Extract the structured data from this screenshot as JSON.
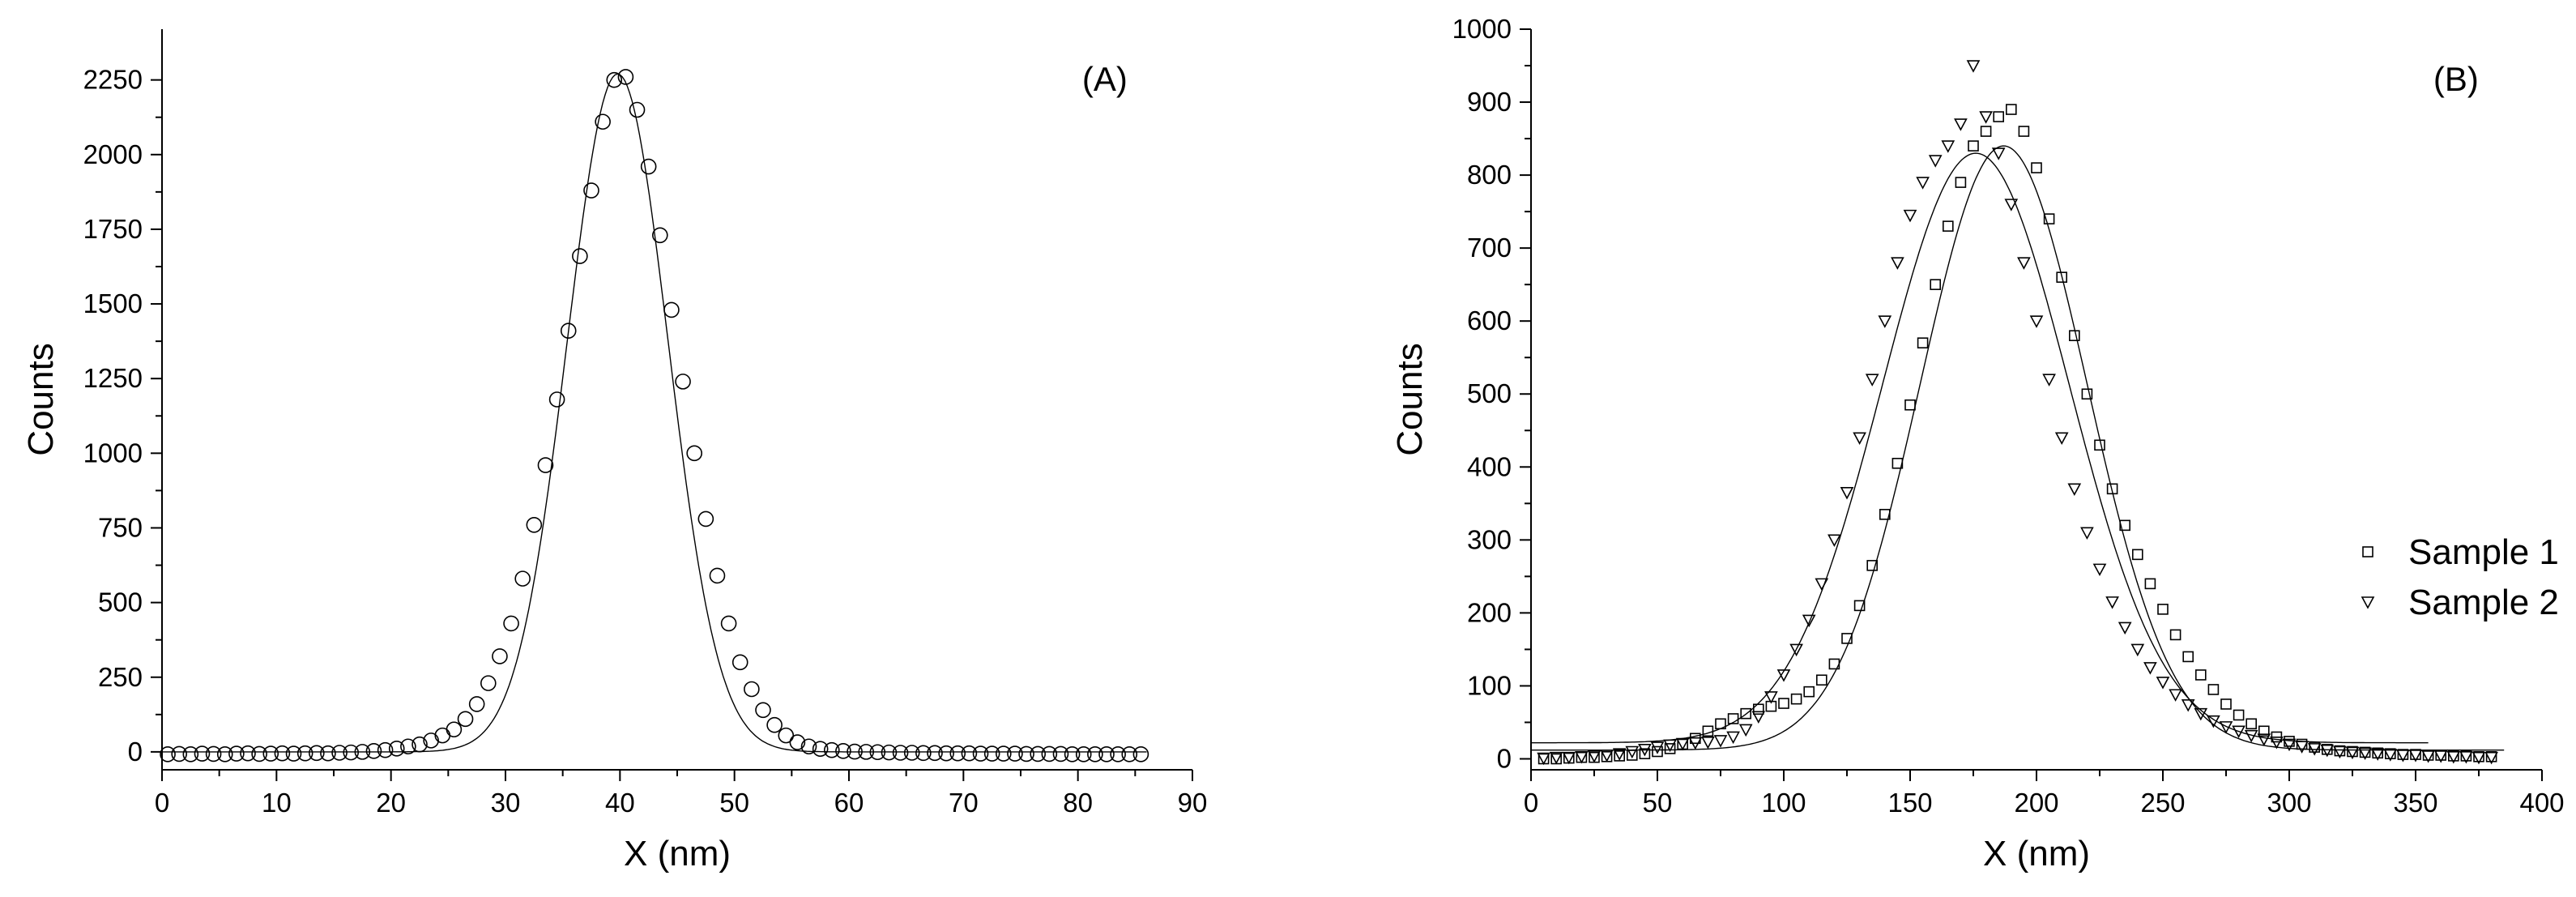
{
  "chart_data": [
    {
      "type": "scatter",
      "panel_label": "(A)",
      "xlabel": "X (nm)",
      "ylabel": "Counts",
      "xlim": [
        0,
        90
      ],
      "ylim": [
        -60,
        2420
      ],
      "xticks": [
        0,
        10,
        20,
        30,
        40,
        50,
        60,
        70,
        80,
        90
      ],
      "yticks": [
        0,
        250,
        500,
        750,
        1000,
        1250,
        1500,
        1750,
        2000,
        2250
      ],
      "grid": false,
      "marker": "circle",
      "fit": {
        "type": "gaussian",
        "center": 39.8,
        "sigma": 4.4,
        "amplitude": 2270,
        "baseline": 0
      },
      "series": [
        {
          "x": [
            0.5,
            1.5,
            2.5,
            3.5,
            4.5,
            5.5,
            6.5,
            7.5,
            8.5,
            9.5,
            10.5,
            11.5,
            12.5,
            13.5,
            14.5,
            15.5,
            16.5,
            17.5,
            18.5,
            19.5,
            20.5,
            21.5,
            22.5,
            23.5,
            24.5,
            25.5,
            26.5,
            27.5,
            28.5,
            29.5,
            30.5,
            31.5,
            32.5,
            33.5,
            34.5,
            35.5,
            36.5,
            37.5,
            38.5,
            39.5,
            40.5,
            41.5,
            42.5,
            43.5,
            44.5,
            45.5,
            46.5,
            47.5,
            48.5,
            49.5,
            50.5,
            51.5,
            52.5,
            53.5,
            54.5,
            55.5,
            56.5,
            57.5,
            58.5,
            59.5,
            60.5,
            61.5,
            62.5,
            63.5,
            64.5,
            65.5,
            66.5,
            67.5,
            68.5,
            69.5,
            70.5,
            71.5,
            72.5,
            73.5,
            74.5,
            75.5,
            76.5,
            77.5,
            78.5,
            79.5,
            80.5,
            81.5,
            82.5,
            83.5,
            84.5,
            85.5
          ],
          "y": [
            -8,
            -7,
            -8,
            -6,
            -7,
            -8,
            -6,
            -5,
            -7,
            -6,
            -5,
            -6,
            -5,
            -4,
            -5,
            -3,
            -2,
            0,
            3,
            6,
            11,
            18,
            25,
            38,
            55,
            75,
            110,
            160,
            230,
            320,
            430,
            580,
            760,
            960,
            1180,
            1410,
            1660,
            1880,
            2110,
            2250,
            2260,
            2150,
            1960,
            1730,
            1480,
            1240,
            1000,
            780,
            590,
            430,
            300,
            210,
            140,
            90,
            55,
            32,
            18,
            10,
            6,
            3,
            1,
            0,
            -1,
            -2,
            -3,
            -3,
            -4,
            -4,
            -5,
            -5,
            -5,
            -6,
            -6,
            -6,
            -6,
            -7,
            -7,
            -7,
            -7,
            -8,
            -8,
            -8,
            -8,
            -8,
            -8,
            -8
          ]
        }
      ]
    },
    {
      "type": "scatter",
      "panel_label": "(B)",
      "xlabel": "X (nm)",
      "ylabel": "Counts",
      "xlim": [
        0,
        400
      ],
      "ylim": [
        -15,
        1000
      ],
      "xticks": [
        0,
        50,
        100,
        150,
        200,
        250,
        300,
        350,
        400
      ],
      "yticks": [
        0,
        100,
        200,
        300,
        400,
        500,
        600,
        700,
        800,
        900,
        1000
      ],
      "grid": false,
      "legend": "right",
      "series": [
        {
          "name": "Sample 1",
          "marker": "square",
          "fit": {
            "type": "gaussian",
            "center": 187,
            "sigma": 33,
            "amplitude": 828,
            "baseline": 12,
            "x_end": 385
          },
          "x": [
            5,
            10,
            15,
            20,
            25,
            30,
            35,
            40,
            45,
            50,
            55,
            60,
            65,
            70,
            75,
            80,
            85,
            90,
            95,
            100,
            105,
            110,
            115,
            120,
            125,
            130,
            135,
            140,
            145,
            150,
            155,
            160,
            165,
            170,
            175,
            180,
            185,
            190,
            195,
            200,
            205,
            210,
            215,
            220,
            225,
            230,
            235,
            240,
            245,
            250,
            255,
            260,
            265,
            270,
            275,
            280,
            285,
            290,
            295,
            300,
            305,
            310,
            315,
            320,
            325,
            330,
            335,
            340,
            345,
            350,
            355,
            360,
            365,
            370,
            375,
            380
          ],
          "y": [
            0,
            0,
            1,
            2,
            2,
            3,
            4,
            5,
            7,
            10,
            14,
            20,
            28,
            38,
            48,
            55,
            62,
            68,
            72,
            76,
            82,
            92,
            108,
            130,
            165,
            210,
            265,
            335,
            405,
            485,
            570,
            650,
            730,
            790,
            840,
            860,
            880,
            890,
            860,
            810,
            740,
            660,
            580,
            500,
            430,
            370,
            320,
            280,
            240,
            205,
            170,
            140,
            115,
            95,
            75,
            60,
            48,
            38,
            30,
            24,
            20,
            16,
            13,
            11,
            10,
            9,
            8,
            7,
            6,
            6,
            5,
            5,
            4,
            4,
            3,
            3
          ]
        },
        {
          "name": "Sample 2",
          "marker": "triangle-down",
          "fit": {
            "type": "gaussian",
            "center": 176,
            "sigma": 37,
            "amplitude": 808,
            "baseline": 22,
            "x_end": 355
          },
          "x": [
            5,
            10,
            15,
            20,
            25,
            30,
            35,
            40,
            45,
            50,
            55,
            60,
            65,
            70,
            75,
            80,
            85,
            90,
            95,
            100,
            105,
            110,
            115,
            120,
            125,
            130,
            135,
            140,
            145,
            150,
            155,
            160,
            165,
            170,
            175,
            180,
            185,
            190,
            195,
            200,
            205,
            210,
            215,
            220,
            225,
            230,
            235,
            240,
            245,
            250,
            255,
            260,
            265,
            270,
            275,
            280,
            285,
            290,
            295,
            300,
            305,
            310,
            315,
            320,
            325,
            330,
            335,
            340,
            345,
            350,
            355,
            360,
            365,
            370,
            375,
            380
          ],
          "y": [
            1,
            2,
            2,
            3,
            4,
            5,
            7,
            10,
            13,
            16,
            19,
            21,
            22,
            23,
            25,
            30,
            40,
            58,
            85,
            115,
            150,
            190,
            240,
            300,
            365,
            440,
            520,
            600,
            680,
            745,
            790,
            820,
            840,
            870,
            950,
            880,
            830,
            760,
            680,
            600,
            520,
            440,
            370,
            310,
            260,
            215,
            180,
            150,
            125,
            105,
            88,
            74,
            62,
            52,
            44,
            38,
            32,
            27,
            23,
            20,
            17,
            14,
            12,
            10,
            9,
            8,
            7,
            6,
            5,
            5,
            4,
            4,
            3,
            3,
            2,
            2
          ]
        }
      ]
    }
  ]
}
